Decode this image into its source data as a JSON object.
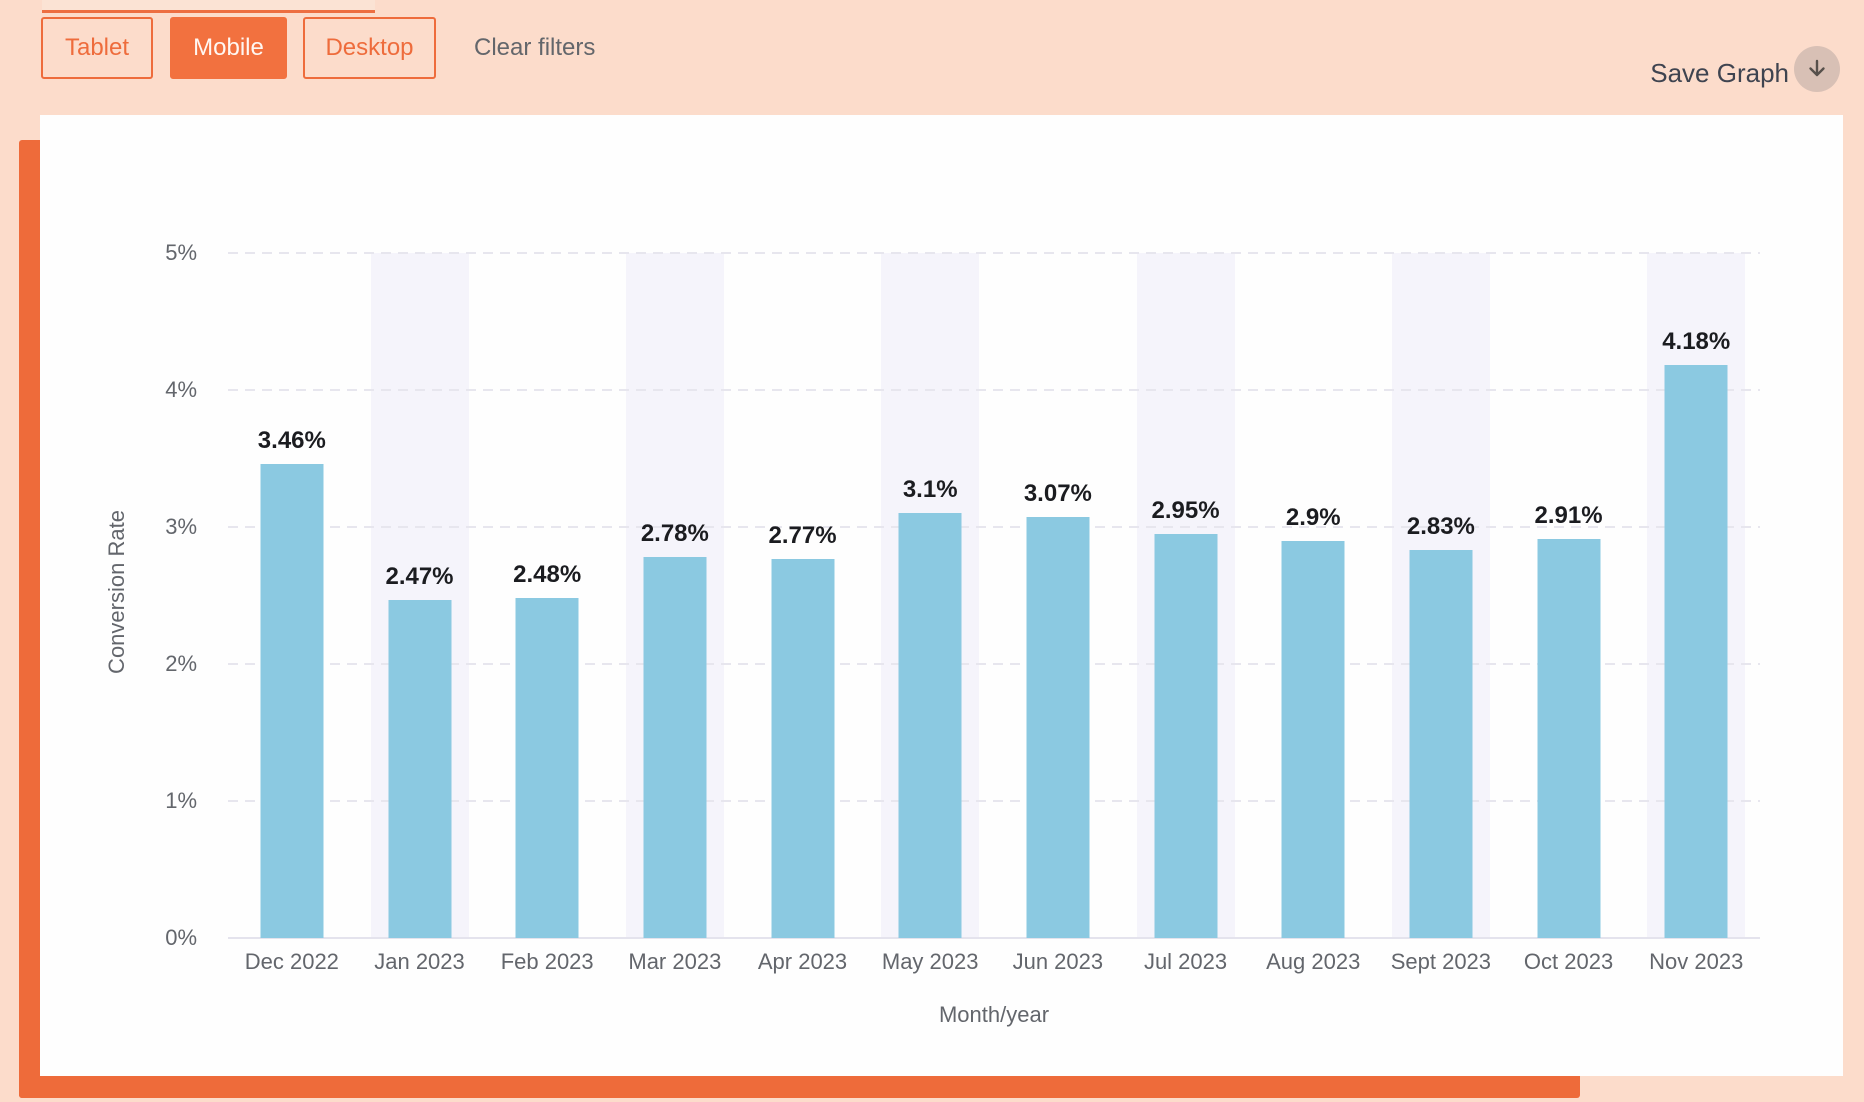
{
  "page": {
    "background": "#fcdccb",
    "accent_orange": "#ee6c3c",
    "card_background": "#fefefe"
  },
  "toolbar": {
    "filters": [
      {
        "label": "Tablet",
        "active": false
      },
      {
        "label": "Mobile",
        "active": true
      },
      {
        "label": "Desktop",
        "active": false
      }
    ],
    "clear_filters_label": "Clear filters",
    "save_graph_label": "Save Graph",
    "save_icon": "download-arrow-icon"
  },
  "chart_data": {
    "type": "bar",
    "title": "",
    "xlabel": "Month/year",
    "ylabel": "Conversion Rate",
    "categories": [
      "Dec 2022",
      "Jan 2023",
      "Feb 2023",
      "Mar 2023",
      "Apr 2023",
      "May 2023",
      "Jun 2023",
      "Jul 2023",
      "Aug 2023",
      "Sept 2023",
      "Oct 2023",
      "Nov 2023"
    ],
    "values": [
      3.46,
      2.47,
      2.48,
      2.78,
      2.77,
      3.1,
      3.07,
      2.95,
      2.9,
      2.83,
      2.91,
      4.18
    ],
    "value_labels": [
      "3.46%",
      "2.47%",
      "2.48%",
      "2.78%",
      "2.77%",
      "3.1%",
      "3.07%",
      "2.95%",
      "2.9%",
      "2.83%",
      "2.91%",
      "4.18%"
    ],
    "y_ticks": [
      "0%",
      "1%",
      "2%",
      "3%",
      "4%",
      "5%"
    ],
    "ylim": [
      0,
      5
    ],
    "grid": "horizontal-dashed",
    "legend": "none",
    "bar_color": "#8bc9e1",
    "stripe_color": "#f5f4fb",
    "striped_indices": [
      1,
      3,
      5,
      7,
      9,
      11
    ]
  }
}
